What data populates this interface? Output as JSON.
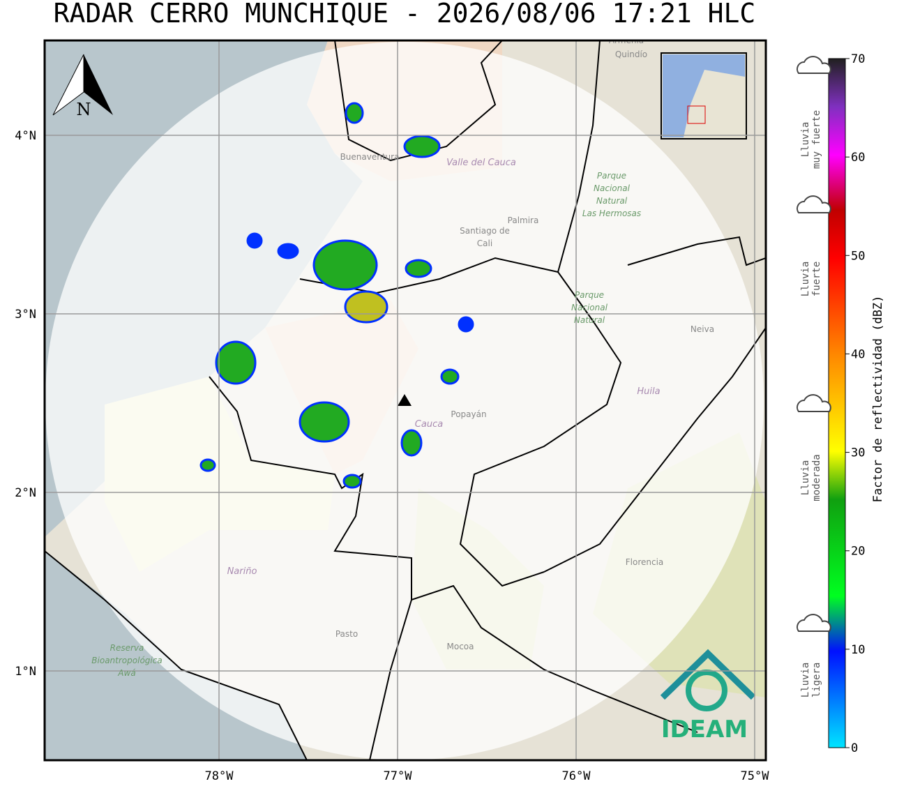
{
  "title": "RADAR CERRO MUNCHIQUE - 2026/08/06 17:21 HLC",
  "north": "N",
  "lat_ticks": [
    {
      "value": 4,
      "label": "4°N"
    },
    {
      "value": 3,
      "label": "3°N"
    },
    {
      "value": 2,
      "label": "2°N"
    },
    {
      "value": 1,
      "label": "1°N"
    }
  ],
  "lon_ticks": [
    {
      "value": -78,
      "label": "78°W"
    },
    {
      "value": -77,
      "label": "77°W"
    },
    {
      "value": -76,
      "label": "76°W"
    },
    {
      "value": -75,
      "label": "75°W"
    }
  ],
  "colorbar": {
    "label": "Factor de reflectividad (dBZ)",
    "ticks": [
      0,
      10,
      20,
      30,
      40,
      50,
      60,
      70
    ]
  },
  "rain_legend": [
    {
      "lines": [
        "Lluvia",
        "muy fuerte"
      ]
    },
    {
      "lines": [
        "Lluvia",
        "fuerte"
      ]
    },
    {
      "lines": [
        "Lluvia",
        "moderada"
      ]
    },
    {
      "lines": [
        "Lluvia",
        "ligera"
      ]
    }
  ],
  "places": [
    {
      "lines": [
        "Santiago de",
        "Cali"
      ]
    },
    {
      "lines": [
        "Palmira"
      ]
    },
    {
      "lines": [
        "Neiva"
      ]
    },
    {
      "lines": [
        "Popayán"
      ]
    },
    {
      "lines": [
        "Florencia"
      ]
    },
    {
      "lines": [
        "Pasto"
      ]
    },
    {
      "lines": [
        "Mocoa"
      ]
    },
    {
      "lines": [
        "Buenaventura"
      ]
    },
    {
      "lines": [
        "Armenia"
      ]
    },
    {
      "lines": [
        "Quindío"
      ]
    }
  ],
  "parks": [
    {
      "lines": [
        "Parque",
        "Nacional",
        "Natural",
        "Las Hermosas"
      ]
    },
    {
      "lines": [
        "Parque",
        "Nacional",
        "Natural"
      ]
    },
    {
      "lines": [
        "Reserva",
        "Bioantropológica",
        "Awá"
      ]
    }
  ],
  "departments": [
    "Valle del Cauca",
    "Huila",
    "Cauca",
    "Nariño"
  ],
  "logo": "IDEAM"
}
